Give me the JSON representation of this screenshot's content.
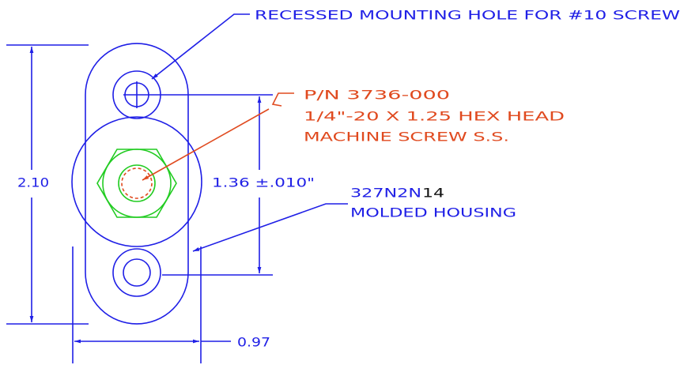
{
  "labels": {
    "mounting_hole": "RECESSED MOUNTING HOLE FOR #10 SCREW",
    "part_number": "P/N 3736-000",
    "screw_size": "1/4\"-20 X 1.25 HEX HEAD",
    "screw_type": "MACHINE SCREW S.S.",
    "housing_code": "327N2N",
    "housing_code_suffix": "14",
    "housing_name": "MOLDED HOUSING"
  },
  "dimensions": {
    "height": "2.10",
    "hole_spacing": "1.36 ±.010\"",
    "width": "0.97"
  }
}
